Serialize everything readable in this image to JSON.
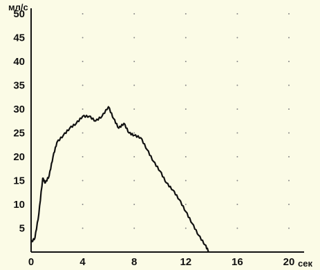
{
  "chart_data": {
    "type": "line",
    "ylabel": "мл/с",
    "xlabel": "сек",
    "xlim": [
      0,
      20
    ],
    "ylim": [
      0,
      50
    ],
    "x_ticks": [
      "0",
      "4",
      "8",
      "12",
      "16",
      "20"
    ],
    "y_ticks": [
      "5",
      "10",
      "15",
      "20",
      "25",
      "30",
      "35",
      "40",
      "45",
      "50"
    ],
    "grid": "dotted",
    "colors": {
      "background": "#fbfbe6",
      "line": "#111111"
    },
    "series": [
      {
        "x": [
          0,
          0.3,
          0.6,
          0.9,
          1.1,
          1.4,
          1.7,
          2.0,
          2.5,
          3.0,
          3.5,
          4.0,
          4.5,
          5.0,
          5.5,
          6.0,
          6.4,
          6.8,
          7.2,
          7.6,
          8.0,
          8.5,
          9.0,
          9.5,
          10.0,
          10.5,
          11.0,
          11.5,
          12.0,
          12.5,
          13.0,
          13.5,
          13.8
        ],
        "y": [
          2,
          3,
          8,
          15.5,
          14.5,
          16,
          20,
          23,
          24.5,
          26,
          27,
          28.5,
          28.5,
          27.5,
          28.5,
          30.5,
          28,
          26,
          27,
          25,
          24.5,
          24,
          21.5,
          19,
          17,
          14.5,
          13,
          11,
          8.5,
          6,
          3.5,
          1.5,
          0
        ]
      }
    ]
  }
}
